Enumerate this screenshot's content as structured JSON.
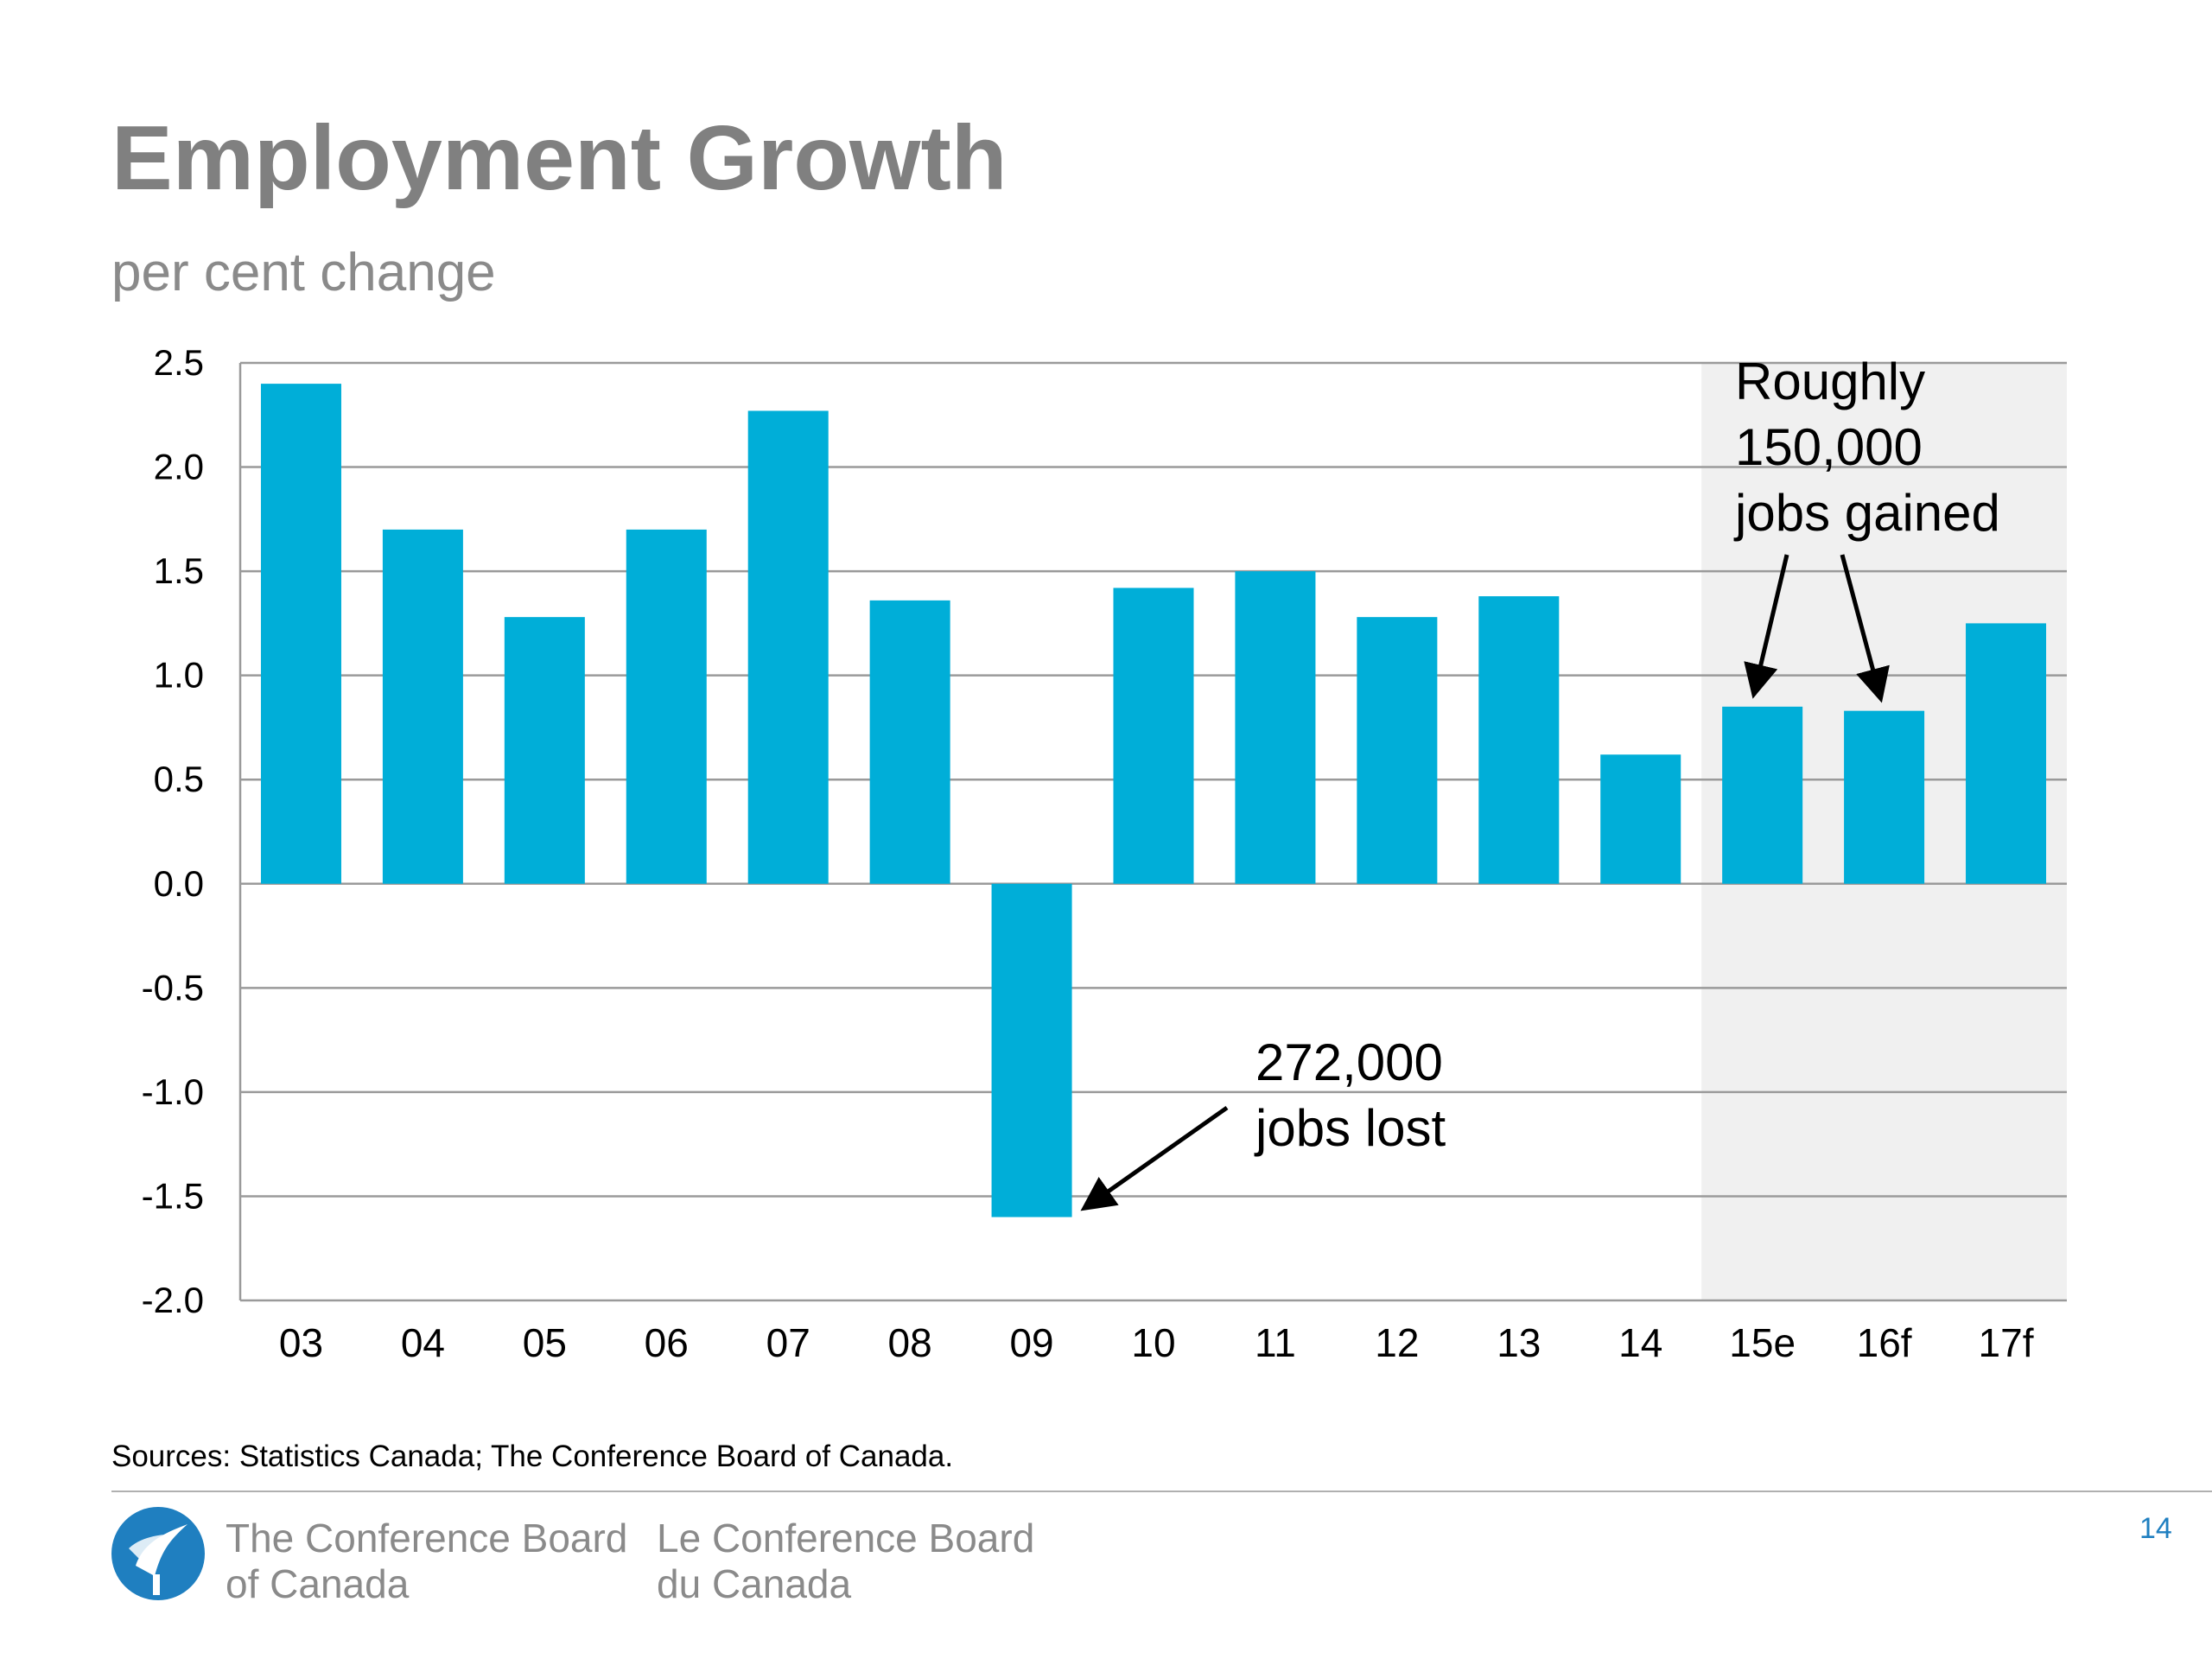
{
  "slide": {
    "title": "Employment Growth",
    "subtitle": "per cent change",
    "sources": "Sources: Statistics Canada; The Conference Board of Canada.",
    "brand_en": [
      "The Conference Board",
      "of Canada"
    ],
    "brand_fr": [
      "Le Conference Board",
      "du Canada"
    ],
    "page_number": "14",
    "logo_icon": "torch-globe-icon"
  },
  "colors": {
    "bar": "#00aed8",
    "forecast_shade": "#f0f0f0",
    "grid": "#9a9a9a",
    "title_gray": "#808080",
    "page_number": "#1f7fc0"
  },
  "chart_data": {
    "type": "bar",
    "categories": [
      "03",
      "04",
      "05",
      "06",
      "07",
      "08",
      "09",
      "10",
      "11",
      "12",
      "13",
      "14",
      "15e",
      "16f",
      "17f"
    ],
    "values": [
      2.4,
      1.7,
      1.28,
      1.7,
      2.27,
      1.36,
      -1.6,
      1.42,
      1.5,
      1.28,
      1.38,
      0.62,
      0.85,
      0.83,
      1.25
    ],
    "ylim": [
      -2.0,
      2.5
    ],
    "yticks": [
      "2.5",
      "2.0",
      "1.5",
      "1.0",
      "0.5",
      "0.0",
      "-0.5",
      "-1.0",
      "-1.5",
      "-2.0"
    ],
    "grid": true,
    "shaded_categories": [
      "15e",
      "16f",
      "17f"
    ],
    "annotations": [
      {
        "lines": [
          "272,000",
          "jobs lost"
        ],
        "points_to": [
          "09"
        ]
      },
      {
        "lines": [
          "Roughly",
          "150,000",
          "jobs gained"
        ],
        "points_to": [
          "15e",
          "16f"
        ]
      }
    ]
  }
}
